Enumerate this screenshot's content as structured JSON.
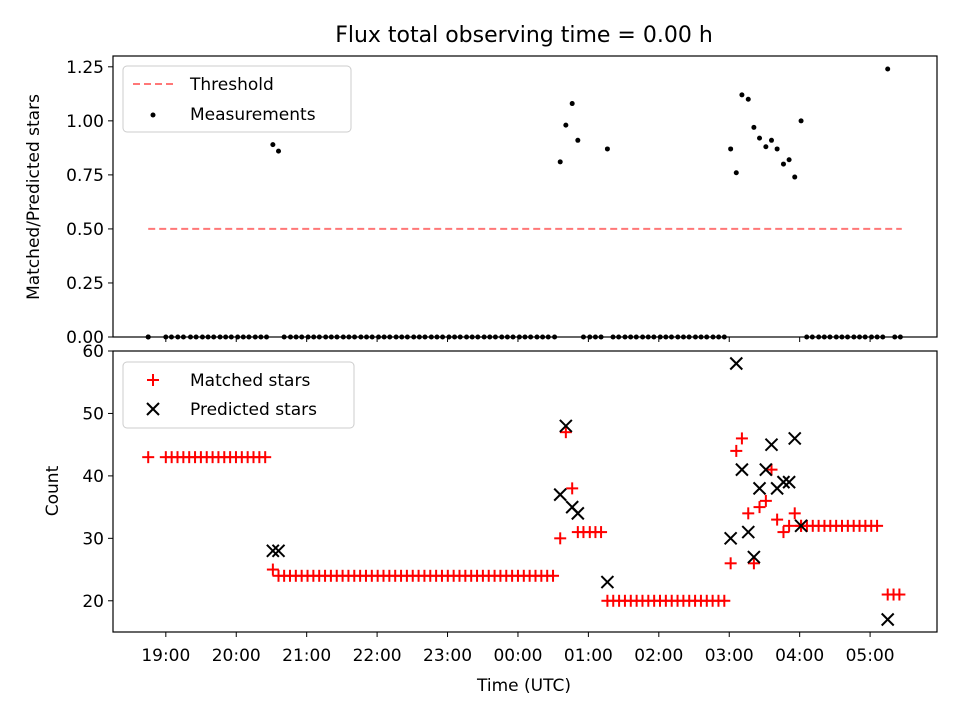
{
  "figure": {
    "title": "Flux total observing time = 0.00 h",
    "xlabel": "Time (UTC)",
    "x_ticks": [
      "19:00",
      "20:00",
      "21:00",
      "22:00",
      "23:00",
      "00:00",
      "01:00",
      "02:00",
      "03:00",
      "04:00",
      "05:00"
    ]
  },
  "chart_data": [
    {
      "type": "scatter",
      "ylabel": "Matched/Predicted stars",
      "ylim": [
        0,
        1.3
      ],
      "xlim_hours": [
        18.25,
        29.95
      ],
      "y_ticks": [
        "0.00",
        "0.25",
        "0.50",
        "0.75",
        "1.00",
        "1.25"
      ],
      "legend": {
        "placement": "top-left",
        "entries": [
          "Threshold",
          "Measurements"
        ]
      },
      "threshold": {
        "name": "Threshold",
        "x_range_hours": [
          18.75,
          29.45
        ],
        "value": 0.5,
        "color": "#ff7777"
      },
      "measurements": {
        "name": "Measurements",
        "color": "#000000",
        "points": [
          [
            18.75,
            0
          ],
          [
            18.75,
            0
          ],
          [
            19.0,
            0
          ],
          [
            19.08,
            0
          ],
          [
            19.17,
            0
          ],
          [
            19.25,
            0
          ],
          [
            19.35,
            0
          ],
          [
            19.43,
            0
          ],
          [
            19.52,
            0
          ],
          [
            19.6,
            0
          ],
          [
            19.68,
            0
          ],
          [
            19.77,
            0
          ],
          [
            19.85,
            0
          ],
          [
            19.93,
            0
          ],
          [
            20.02,
            0
          ],
          [
            20.1,
            0
          ],
          [
            20.18,
            0
          ],
          [
            20.27,
            0
          ],
          [
            20.35,
            0
          ],
          [
            20.43,
            0
          ],
          [
            20.52,
            0.89
          ],
          [
            20.6,
            0.86
          ],
          [
            20.68,
            0
          ],
          [
            20.77,
            0
          ],
          [
            20.85,
            0
          ],
          [
            20.93,
            0
          ],
          [
            21.02,
            0
          ],
          [
            21.1,
            0
          ],
          [
            21.18,
            0
          ],
          [
            21.27,
            0
          ],
          [
            21.35,
            0
          ],
          [
            21.43,
            0
          ],
          [
            21.52,
            0
          ],
          [
            21.6,
            0
          ],
          [
            21.68,
            0
          ],
          [
            21.77,
            0
          ],
          [
            21.85,
            0
          ],
          [
            21.93,
            0
          ],
          [
            22.02,
            0
          ],
          [
            22.1,
            0
          ],
          [
            22.18,
            0
          ],
          [
            22.27,
            0
          ],
          [
            22.35,
            0
          ],
          [
            22.43,
            0
          ],
          [
            22.52,
            0
          ],
          [
            22.6,
            0
          ],
          [
            22.68,
            0
          ],
          [
            22.77,
            0
          ],
          [
            22.85,
            0
          ],
          [
            22.93,
            0
          ],
          [
            23.02,
            0
          ],
          [
            23.1,
            0
          ],
          [
            23.18,
            0
          ],
          [
            23.27,
            0
          ],
          [
            23.35,
            0
          ],
          [
            23.43,
            0
          ],
          [
            23.52,
            0
          ],
          [
            23.6,
            0
          ],
          [
            23.68,
            0
          ],
          [
            23.77,
            0
          ],
          [
            23.85,
            0
          ],
          [
            23.93,
            0
          ],
          [
            24.02,
            0
          ],
          [
            24.1,
            0
          ],
          [
            24.18,
            0
          ],
          [
            24.27,
            0
          ],
          [
            24.35,
            0
          ],
          [
            24.43,
            0
          ],
          [
            24.52,
            0
          ],
          [
            24.6,
            0.81
          ],
          [
            24.68,
            0.98
          ],
          [
            24.77,
            1.08
          ],
          [
            24.85,
            0.91
          ],
          [
            24.93,
            0
          ],
          [
            25.02,
            0
          ],
          [
            25.1,
            0
          ],
          [
            25.18,
            0
          ],
          [
            25.27,
            0.87
          ],
          [
            25.35,
            0
          ],
          [
            25.43,
            0
          ],
          [
            25.52,
            0
          ],
          [
            25.6,
            0
          ],
          [
            25.68,
            0
          ],
          [
            25.77,
            0
          ],
          [
            25.85,
            0
          ],
          [
            25.93,
            0
          ],
          [
            26.02,
            0
          ],
          [
            26.1,
            0
          ],
          [
            26.18,
            0
          ],
          [
            26.27,
            0
          ],
          [
            26.35,
            0
          ],
          [
            26.43,
            0
          ],
          [
            26.52,
            0
          ],
          [
            26.6,
            0
          ],
          [
            26.68,
            0
          ],
          [
            26.77,
            0
          ],
          [
            26.85,
            0
          ],
          [
            26.93,
            0
          ],
          [
            27.02,
            0.87
          ],
          [
            27.1,
            0.76
          ],
          [
            27.18,
            1.12
          ],
          [
            27.27,
            1.1
          ],
          [
            27.35,
            0.97
          ],
          [
            27.43,
            0.92
          ],
          [
            27.52,
            0.88
          ],
          [
            27.6,
            0.91
          ],
          [
            27.68,
            0.87
          ],
          [
            27.77,
            0.8
          ],
          [
            27.85,
            0.82
          ],
          [
            27.93,
            0.74
          ],
          [
            28.02,
            1.0
          ],
          [
            28.1,
            0
          ],
          [
            28.18,
            0
          ],
          [
            28.27,
            0
          ],
          [
            28.35,
            0
          ],
          [
            28.43,
            0
          ],
          [
            28.52,
            0
          ],
          [
            28.6,
            0
          ],
          [
            28.68,
            0
          ],
          [
            28.77,
            0
          ],
          [
            28.85,
            0
          ],
          [
            28.93,
            0
          ],
          [
            29.02,
            0
          ],
          [
            29.1,
            0
          ],
          [
            29.18,
            0
          ],
          [
            29.25,
            1.24
          ],
          [
            29.35,
            0
          ],
          [
            29.43,
            0
          ]
        ]
      }
    },
    {
      "type": "scatter",
      "ylabel": "Count",
      "ylim": [
        15,
        60
      ],
      "xlim_hours": [
        18.25,
        29.95
      ],
      "y_ticks": [
        "20",
        "30",
        "40",
        "50",
        "60"
      ],
      "legend": {
        "placement": "top-left",
        "entries": [
          "Matched stars",
          "Predicted stars"
        ]
      },
      "series": [
        {
          "name": "Matched stars",
          "marker": "plus",
          "color": "#ff0000",
          "runs": [
            {
              "from": 18.75,
              "to": 18.75,
              "step": 0.083,
              "value": 43
            },
            {
              "from": 19.0,
              "to": 20.43,
              "step": 0.083,
              "value": 43
            },
            {
              "from": 20.68,
              "to": 24.52,
              "step": 0.083,
              "value": 24
            },
            {
              "from": 25.27,
              "to": 26.93,
              "step": 0.083,
              "value": 20
            },
            {
              "from": 28.02,
              "to": 29.18,
              "step": 0.083,
              "value": 32
            },
            {
              "from": 29.25,
              "to": 29.43,
              "step": 0.083,
              "value": 21
            }
          ],
          "points": [
            [
              20.52,
              25
            ],
            [
              20.6,
              24
            ],
            [
              24.6,
              30
            ],
            [
              24.68,
              47
            ],
            [
              24.77,
              38
            ],
            [
              24.85,
              31
            ],
            [
              24.93,
              31
            ],
            [
              25.02,
              31
            ],
            [
              25.1,
              31
            ],
            [
              25.18,
              31
            ],
            [
              27.02,
              26
            ],
            [
              27.1,
              44
            ],
            [
              27.18,
              46
            ],
            [
              27.27,
              34
            ],
            [
              27.35,
              26
            ],
            [
              27.43,
              35
            ],
            [
              27.52,
              36
            ],
            [
              27.6,
              41
            ],
            [
              27.68,
              33
            ],
            [
              27.77,
              31
            ],
            [
              27.85,
              32
            ],
            [
              27.93,
              34
            ],
            [
              28.02,
              32
            ]
          ]
        },
        {
          "name": "Predicted stars",
          "marker": "x",
          "color": "#000000",
          "points": [
            [
              20.52,
              28
            ],
            [
              20.6,
              28
            ],
            [
              24.6,
              37
            ],
            [
              24.68,
              48
            ],
            [
              24.77,
              35
            ],
            [
              24.85,
              34
            ],
            [
              25.27,
              23
            ],
            [
              27.02,
              30
            ],
            [
              27.1,
              58
            ],
            [
              27.18,
              41
            ],
            [
              27.27,
              31
            ],
            [
              27.35,
              27
            ],
            [
              27.43,
              38
            ],
            [
              27.52,
              41
            ],
            [
              27.6,
              45
            ],
            [
              27.68,
              38
            ],
            [
              27.77,
              39
            ],
            [
              27.85,
              39
            ],
            [
              27.93,
              46
            ],
            [
              28.02,
              32
            ],
            [
              29.25,
              17
            ]
          ]
        }
      ]
    }
  ]
}
